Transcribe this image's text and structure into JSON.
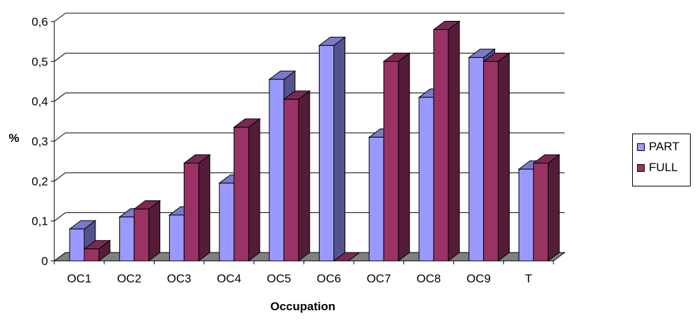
{
  "chart_data": {
    "type": "bar",
    "title": "",
    "xlabel": "Occupation",
    "ylabel": "%",
    "ylim": [
      0,
      0.6
    ],
    "yticks": [
      "0",
      "0,1",
      "0,2",
      "0,3",
      "0,4",
      "0,5",
      "0,6"
    ],
    "grid": true,
    "three_d": true,
    "legend_position": "right",
    "categories": [
      "OC1",
      "OC2",
      "OC3",
      "OC4",
      "OC5",
      "OC6",
      "OC7",
      "OC8",
      "OC9",
      "T"
    ],
    "series": [
      {
        "name": "PART",
        "color": "#9999FF",
        "values": [
          0.08,
          0.11,
          0.115,
          0.195,
          0.455,
          0.54,
          0.31,
          0.41,
          0.51,
          0.23
        ]
      },
      {
        "name": "FULL",
        "color": "#993366",
        "values": [
          0.03,
          0.13,
          0.245,
          0.335,
          0.405,
          0.0,
          0.5,
          0.58,
          0.5,
          0.245
        ]
      }
    ]
  }
}
